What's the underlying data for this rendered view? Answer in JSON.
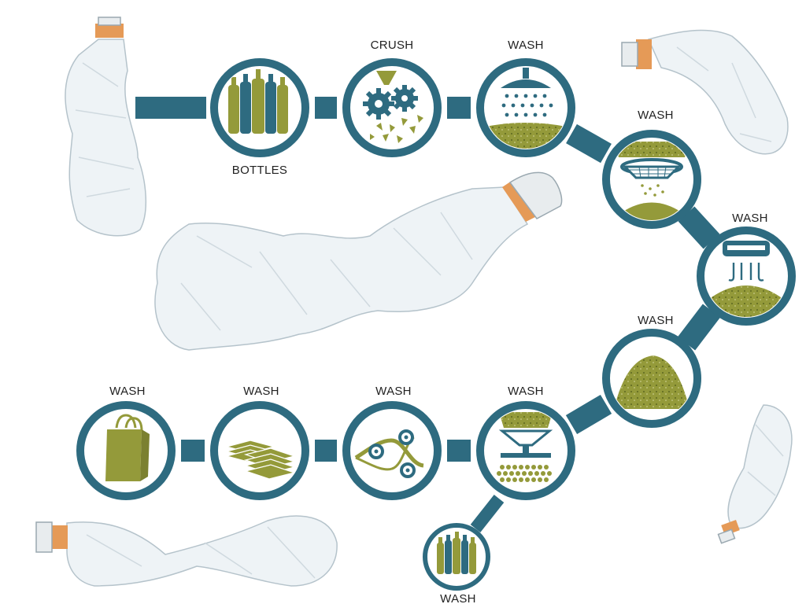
{
  "colors": {
    "teal": "#2e6b80",
    "olive": "#949a3a",
    "bottle_orange": "#e59a57",
    "bottle_fill": "#eef3f6",
    "bottle_stroke": "#b5c3cb"
  },
  "steps": [
    {
      "id": "bottles",
      "label": "BOTTLES",
      "icon": "bottles-icon"
    },
    {
      "id": "crush",
      "label": "CRUSH",
      "icon": "crusher-gears-icon"
    },
    {
      "id": "wash1",
      "label": "WASH",
      "icon": "shower-wash-icon"
    },
    {
      "id": "wash2",
      "label": "WASH",
      "icon": "sieve-icon"
    },
    {
      "id": "wash3",
      "label": "WASH",
      "icon": "dryer-icon"
    },
    {
      "id": "wash4",
      "label": "WASH",
      "icon": "flakes-pile-icon"
    },
    {
      "id": "wash5",
      "label": "WASH",
      "icon": "hopper-pellets-icon"
    },
    {
      "id": "wash6",
      "label": "WASH",
      "icon": "rollers-film-icon"
    },
    {
      "id": "wash7",
      "label": "WASH",
      "icon": "sheets-stack-icon"
    },
    {
      "id": "wash8",
      "label": "WASH",
      "icon": "shopping-bag-icon"
    },
    {
      "id": "wash9",
      "label": "WASH",
      "icon": "bottles-icon"
    }
  ]
}
